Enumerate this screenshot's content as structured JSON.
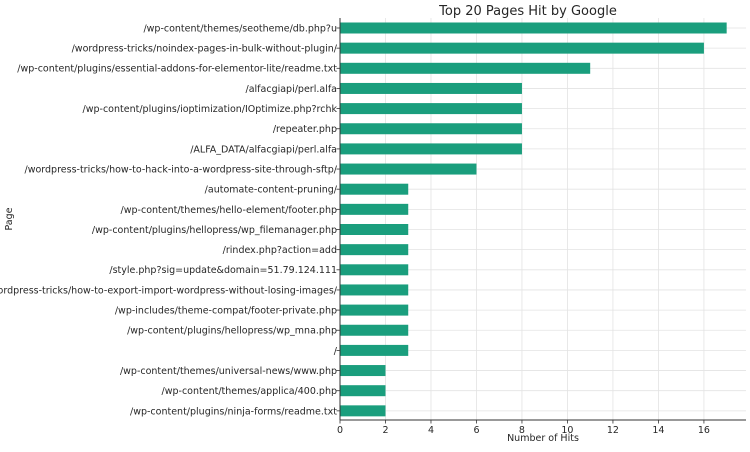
{
  "chart_data": {
    "type": "bar",
    "orientation": "horizontal",
    "title": "Top 20 Pages Hit by Google",
    "xlabel": "Number of Hits",
    "ylabel": "Page",
    "xlim": [
      0,
      17.85
    ],
    "xticks": [
      0,
      2,
      4,
      6,
      8,
      10,
      12,
      14,
      16
    ],
    "grid": true,
    "bar_color": "#1a9e7d",
    "categories": [
      "/wp-content/themes/seotheme/db.php?u",
      "/wordpress-tricks/noindex-pages-in-bulk-without-plugin/",
      "/wp-content/plugins/essential-addons-for-elementor-lite/readme.txt",
      "/alfacgiapi/perl.alfa",
      "/wp-content/plugins/ioptimization/IOptimize.php?rchk",
      "/repeater.php",
      "/ALFA_DATA/alfacgiapi/perl.alfa",
      "/wordpress-tricks/how-to-hack-into-a-wordpress-site-through-sftp/",
      "/automate-content-pruning/",
      "/wp-content/themes/hello-element/footer.php",
      "/wp-content/plugins/hellopress/wp_filemanager.php",
      "/rindex.php?action=add",
      "/style.php?sig=update&domain=51.79.124.111",
      "/wordpress-tricks/how-to-export-import-wordpress-without-losing-images/",
      "/wp-includes/theme-compat/footer-private.php",
      "/wp-content/plugins/hellopress/wp_mna.php",
      "/",
      "/wp-content/themes/universal-news/www.php",
      "/wp-content/themes/applica/400.php",
      "/wp-content/plugins/ninja-forms/readme.txt"
    ],
    "values": [
      17,
      16,
      11,
      8,
      8,
      8,
      8,
      6,
      3,
      3,
      3,
      3,
      3,
      3,
      3,
      3,
      3,
      2,
      2,
      2
    ]
  }
}
